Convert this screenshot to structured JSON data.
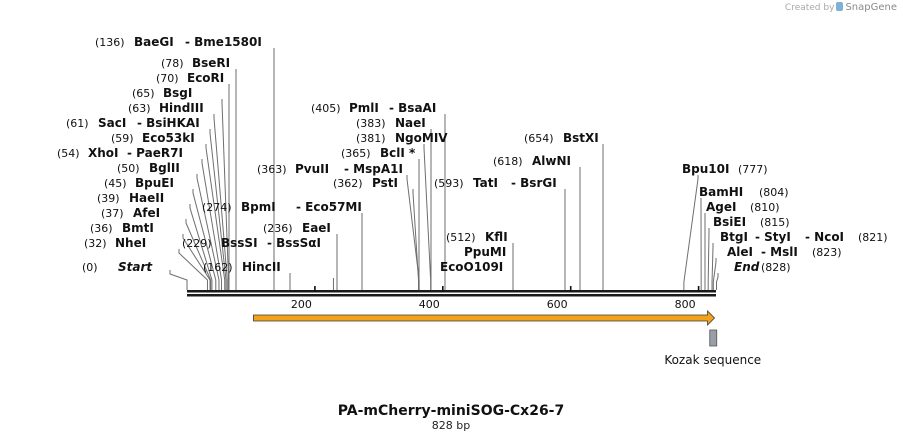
{
  "branding": {
    "created_by": "Created by",
    "brand": "SnapGene"
  },
  "plasmid": {
    "name": "PA-mCherry-miniSOG-Cx26-7",
    "length_label": "828 bp",
    "length_bp": 828
  },
  "ruler": {
    "ticks": [
      200,
      400,
      600,
      800
    ]
  },
  "features": [
    {
      "name": "orf-arrow",
      "start": 118,
      "end": 828,
      "color": "#f4a21a",
      "direction": "forward"
    },
    {
      "name": "Kozak sequence",
      "label": "Kozak sequence",
      "start": 819,
      "end": 828,
      "color": "#9a9ea6"
    }
  ],
  "enzymes": [
    {
      "id": "start",
      "parts": [
        "(0)",
        "Start"
      ],
      "italic": true,
      "pos": 0
    },
    {
      "id": "nhei",
      "parts": [
        "(32)",
        "NheI"
      ],
      "pos": 32
    },
    {
      "id": "bmti",
      "parts": [
        "(36)",
        "BmtI"
      ],
      "pos": 36
    },
    {
      "id": "afei",
      "parts": [
        "(37)",
        "AfeI"
      ],
      "pos": 37
    },
    {
      "id": "haeii",
      "parts": [
        "(39)",
        "HaeII"
      ],
      "pos": 39
    },
    {
      "id": "bpuei",
      "parts": [
        "(45)",
        "BpuEI"
      ],
      "pos": 45
    },
    {
      "id": "bglii",
      "parts": [
        "(50)",
        "BglII"
      ],
      "pos": 50
    },
    {
      "id": "xhoi",
      "parts": [
        "(54)",
        "XhoI",
        "- PaeR7I"
      ],
      "pos": 54
    },
    {
      "id": "eco53ki",
      "parts": [
        "(59)",
        "Eco53kI"
      ],
      "pos": 59
    },
    {
      "id": "saci",
      "parts": [
        "(61)",
        "SacI",
        "- BsiHKAI"
      ],
      "pos": 61
    },
    {
      "id": "hindiii",
      "parts": [
        "(63)",
        "HindIII"
      ],
      "pos": 63
    },
    {
      "id": "bsgi",
      "parts": [
        "(65)",
        "BsgI"
      ],
      "pos": 65
    },
    {
      "id": "ecori",
      "parts": [
        "(70)",
        "EcoRI"
      ],
      "pos": 70
    },
    {
      "id": "bseri",
      "parts": [
        "(78)",
        "BseRI"
      ],
      "pos": 78
    },
    {
      "id": "baegi",
      "parts": [
        "(136)",
        "BaeGI",
        "- Bme1580I"
      ],
      "pos": 136
    },
    {
      "id": "hincii",
      "parts": [
        "(162)",
        "HincII"
      ],
      "pos": 162
    },
    {
      "id": "bsssi",
      "parts": [
        "(229)",
        "BssSI",
        "- BssSαI"
      ],
      "pos": 229
    },
    {
      "id": "eaei",
      "parts": [
        "(236)",
        "EaeI"
      ],
      "pos": 236
    },
    {
      "id": "bpmi",
      "parts": [
        "(274)",
        "BpmI",
        "- Eco57MI"
      ],
      "pos": 274
    },
    {
      "id": "pvuii",
      "parts": [
        "(363)",
        "PvuII",
        "- MspA1I"
      ],
      "pos": 363
    },
    {
      "id": "psti",
      "parts": [
        "(362)",
        "PstI"
      ],
      "pos": 362
    },
    {
      "id": "bcli",
      "parts": [
        "(365)",
        "BclI *"
      ],
      "pos": 365
    },
    {
      "id": "ngomiv",
      "parts": [
        "(381)",
        "NgoMIV"
      ],
      "pos": 381
    },
    {
      "id": "naei",
      "parts": [
        "(383)",
        "NaeI"
      ],
      "pos": 383
    },
    {
      "id": "pmli",
      "parts": [
        "(405)",
        "PmlI",
        "- BsaAI"
      ],
      "pos": 405
    },
    {
      "id": "ecoo109i",
      "parts": [
        "EcoO109I"
      ],
      "pos": 512
    },
    {
      "id": "ppumi",
      "parts": [
        "PpuMI"
      ],
      "pos": 512
    },
    {
      "id": "kfli",
      "parts": [
        "(512)",
        "KflI"
      ],
      "pos": 512
    },
    {
      "id": "tati",
      "parts": [
        "(593)",
        "TatI",
        "- BsrGI"
      ],
      "pos": 593
    },
    {
      "id": "alwni",
      "parts": [
        "(618)",
        "AlwNI"
      ],
      "pos": 618
    },
    {
      "id": "bstxi",
      "parts": [
        "(654)",
        "BstXI"
      ],
      "pos": 654
    },
    {
      "id": "bpu10i",
      "parts": [
        "Bpu10I",
        "(777)"
      ],
      "pos": 777
    },
    {
      "id": "bamhi",
      "parts": [
        "BamHI",
        "(804)"
      ],
      "pos": 804
    },
    {
      "id": "agei",
      "parts": [
        "AgeI",
        "(810)"
      ],
      "pos": 810
    },
    {
      "id": "bsiei",
      "parts": [
        "BsiEI",
        "(815)"
      ],
      "pos": 815
    },
    {
      "id": "btgi",
      "parts": [
        "BtgI",
        "- StyI",
        "- NcoI",
        "(821)"
      ],
      "pos": 821
    },
    {
      "id": "alei",
      "parts": [
        "AleI",
        "- MslI",
        "(823)"
      ],
      "pos": 823
    },
    {
      "id": "end",
      "parts": [
        "End",
        "(828)"
      ],
      "italic": true,
      "pos": 828
    }
  ]
}
